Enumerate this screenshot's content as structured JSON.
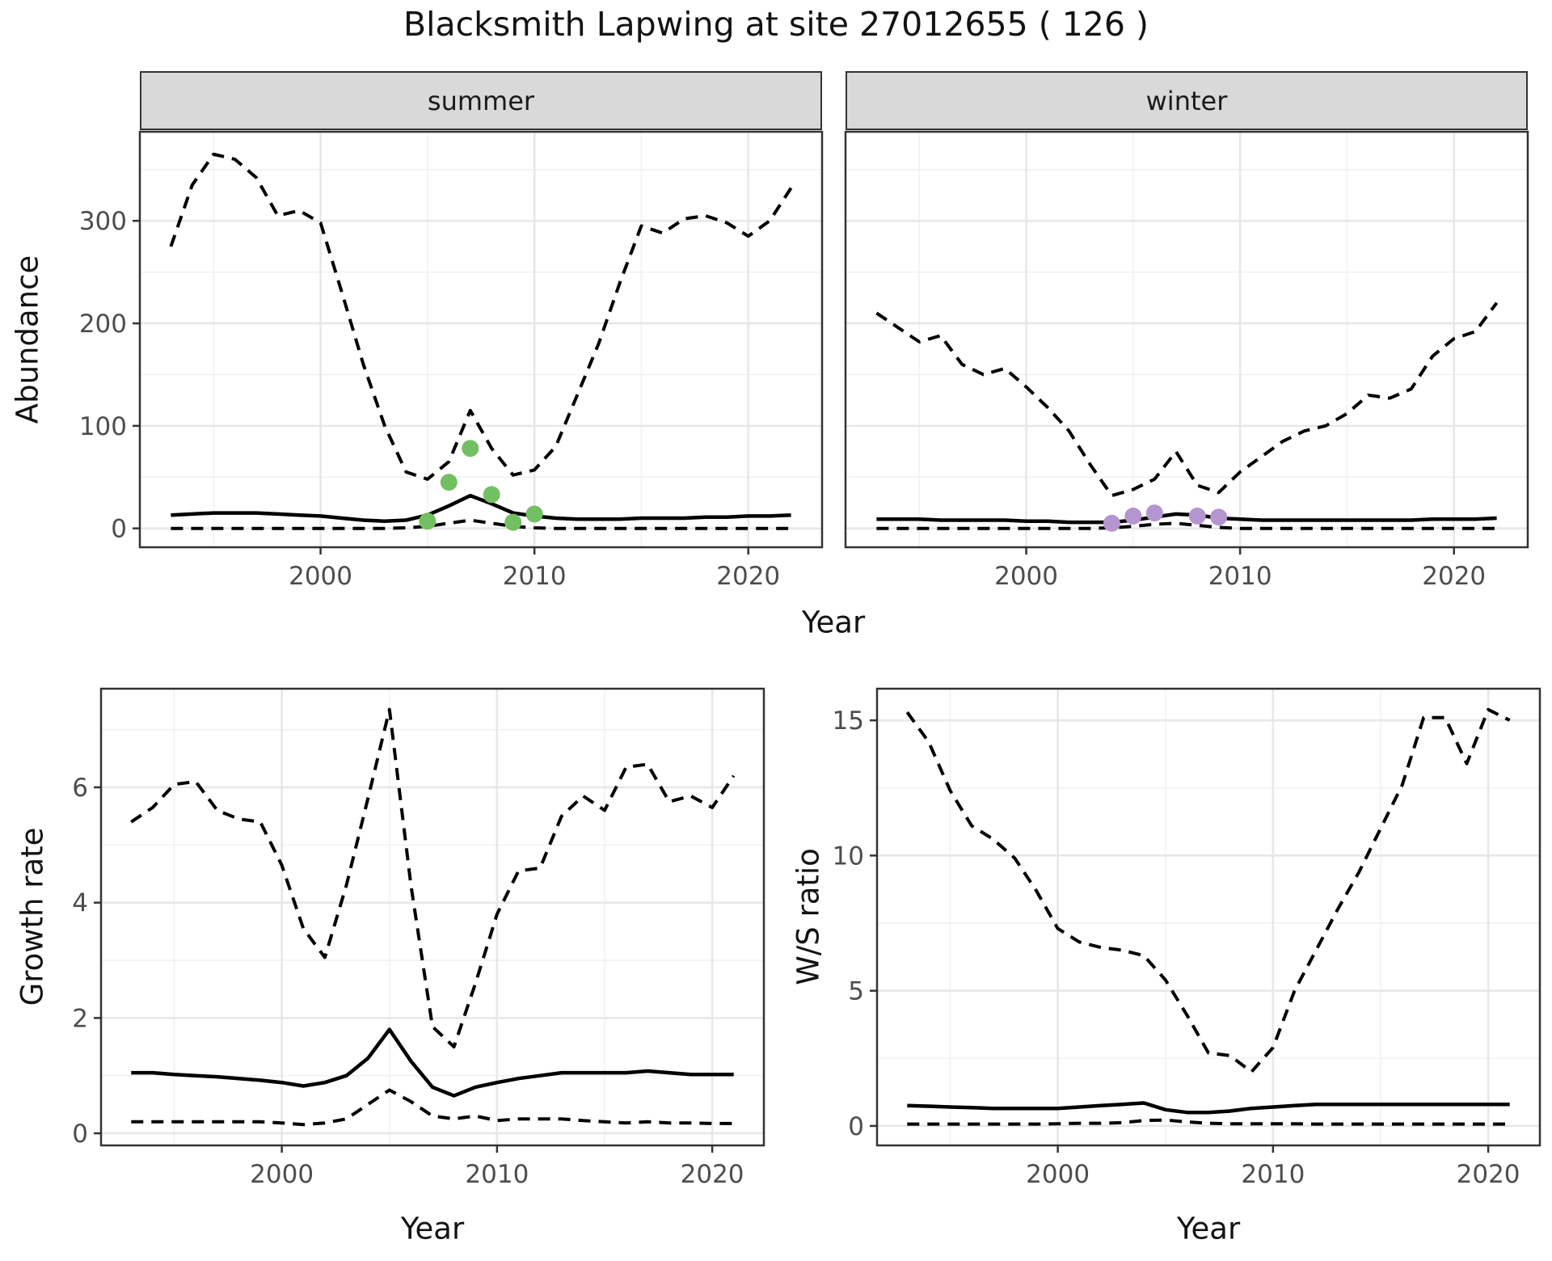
{
  "title": "Blacksmith Lapwing at site 27012655 ( 126 )",
  "colors": {
    "summer_points": "#73bf63",
    "winter_points": "#b495cf",
    "line": "#000000",
    "panel_border": "#333333",
    "grid_major": "#e7e7e7",
    "grid_minor": "#f1f1f1",
    "tick_label": "#4d4d4d",
    "strip_bg": "#d9d9d9"
  },
  "chart_data": [
    {
      "id": "abundance-summer",
      "type": "line",
      "facet_label": "summer",
      "title": "Blacksmith Lapwing at site 27012655 ( 126 )",
      "xlabel": "Year",
      "ylabel": "Abundance",
      "x_domain": [
        1991.55,
        2023.45
      ],
      "y_domain": [
        -18.4,
        386.9
      ],
      "x_ticks": [
        2000,
        2010,
        2020
      ],
      "x_minor": [
        1995,
        2005,
        2015
      ],
      "y_ticks": [
        0,
        100,
        200,
        300
      ],
      "y_minor": [
        50,
        150,
        250,
        350
      ],
      "show_y_axis": true,
      "grid": true,
      "legend": "none",
      "years": [
        1993,
        1994,
        1995,
        1996,
        1997,
        1998,
        1999,
        2000,
        2001,
        2002,
        2003,
        2004,
        2005,
        2006,
        2007,
        2008,
        2009,
        2010,
        2011,
        2012,
        2013,
        2014,
        2015,
        2016,
        2017,
        2018,
        2019,
        2020,
        2021,
        2022
      ],
      "series": [
        {
          "name": "upper-95ci",
          "style": "dashed",
          "values": [
            275,
            335,
            365,
            360,
            342,
            305,
            310,
            298,
            230,
            160,
            100,
            55,
            48,
            65,
            115,
            78,
            52,
            57,
            80,
            130,
            180,
            240,
            295,
            288,
            302,
            305,
            298,
            285,
            300,
            332
          ]
        },
        {
          "name": "median",
          "style": "solid",
          "values": [
            13,
            14,
            15,
            15,
            15,
            14,
            13,
            12,
            10,
            8,
            7,
            8,
            13,
            22,
            32,
            24,
            15,
            12,
            10,
            9,
            9,
            9,
            10,
            10,
            10,
            11,
            11,
            12,
            12,
            13
          ]
        },
        {
          "name": "lower-95ci",
          "style": "dashed",
          "values": [
            0,
            0,
            0,
            0,
            0,
            0,
            0,
            0,
            0,
            0,
            0,
            0.5,
            2,
            5,
            8,
            5,
            2,
            0.5,
            0,
            0,
            0,
            0,
            0,
            0,
            0,
            0,
            0,
            0,
            0,
            0
          ]
        }
      ],
      "points": {
        "name": "observed-summer-counts",
        "color": "#73bf63",
        "years": [
          2005,
          2006,
          2007,
          2008,
          2009,
          2010
        ],
        "values": [
          7,
          45,
          78,
          33,
          6,
          14
        ]
      }
    },
    {
      "id": "abundance-winter",
      "type": "line",
      "facet_label": "winter",
      "xlabel": "Year",
      "ylabel": "Abundance",
      "x_domain": [
        1991.55,
        2023.45
      ],
      "y_domain": [
        -18.4,
        386.9
      ],
      "x_ticks": [
        2000,
        2010,
        2020
      ],
      "x_minor": [
        1995,
        2005,
        2015
      ],
      "y_ticks": [
        0,
        100,
        200,
        300
      ],
      "y_minor": [
        50,
        150,
        250,
        350
      ],
      "show_y_axis": false,
      "grid": true,
      "legend": "none",
      "years": [
        1993,
        1994,
        1995,
        1996,
        1997,
        1998,
        1999,
        2000,
        2001,
        2002,
        2003,
        2004,
        2005,
        2006,
        2007,
        2008,
        2009,
        2010,
        2011,
        2012,
        2013,
        2014,
        2015,
        2016,
        2017,
        2018,
        2019,
        2020,
        2021,
        2022
      ],
      "series": [
        {
          "name": "upper-95ci",
          "style": "dashed",
          "values": [
            210,
            196,
            182,
            188,
            160,
            150,
            156,
            138,
            118,
            95,
            62,
            32,
            38,
            48,
            75,
            42,
            35,
            55,
            70,
            85,
            95,
            100,
            112,
            130,
            127,
            136,
            168,
            185,
            192,
            220
          ]
        },
        {
          "name": "median",
          "style": "solid",
          "values": [
            9,
            9,
            9,
            8,
            8,
            8,
            8,
            7,
            7,
            6,
            6,
            6,
            8,
            11,
            14,
            13,
            10,
            9,
            8,
            8,
            8,
            8,
            8,
            8,
            8,
            8,
            9,
            9,
            9,
            10
          ]
        },
        {
          "name": "lower-95ci",
          "style": "dashed",
          "values": [
            0,
            0,
            0,
            0,
            0,
            0,
            0,
            0,
            0,
            0,
            0,
            0.5,
            2,
            4,
            5,
            3,
            1,
            0,
            0,
            0,
            0,
            0,
            0,
            0,
            0,
            0,
            0,
            0,
            0,
            0
          ]
        }
      ],
      "points": {
        "name": "observed-winter-counts",
        "color": "#b495cf",
        "years": [
          2004,
          2005,
          2006,
          2008,
          2009
        ],
        "values": [
          5,
          12,
          15,
          12,
          11
        ]
      }
    },
    {
      "id": "growth-rate",
      "type": "line",
      "facet_label": "",
      "xlabel": "Year",
      "ylabel": "Growth rate",
      "x_domain": [
        1991.6,
        2022.4
      ],
      "y_domain": [
        -0.21,
        7.71
      ],
      "x_ticks": [
        2000,
        2010,
        2020
      ],
      "x_minor": [
        1995,
        2005,
        2015
      ],
      "y_ticks": [
        0,
        2,
        4,
        6
      ],
      "y_minor": [
        1,
        3,
        5,
        7
      ],
      "show_y_axis": true,
      "grid": true,
      "legend": "none",
      "years": [
        1993,
        1994,
        1995,
        1996,
        1997,
        1998,
        1999,
        2000,
        2001,
        2002,
        2003,
        2004,
        2005,
        2006,
        2007,
        2008,
        2009,
        2010,
        2011,
        2012,
        2013,
        2014,
        2015,
        2016,
        2017,
        2018,
        2019,
        2020,
        2021
      ],
      "series": [
        {
          "name": "upper-95ci",
          "style": "dashed",
          "values": [
            5.4,
            5.65,
            6.05,
            6.1,
            5.6,
            5.45,
            5.4,
            4.65,
            3.55,
            3.05,
            4.3,
            5.8,
            7.35,
            4.3,
            1.85,
            1.5,
            2.6,
            3.8,
            4.55,
            4.6,
            5.5,
            5.85,
            5.6,
            6.35,
            6.4,
            5.75,
            5.85,
            5.65,
            6.2
          ]
        },
        {
          "name": "median",
          "style": "solid",
          "values": [
            1.05,
            1.05,
            1.02,
            1.0,
            0.98,
            0.95,
            0.92,
            0.88,
            0.82,
            0.88,
            1.0,
            1.3,
            1.8,
            1.25,
            0.8,
            0.65,
            0.8,
            0.88,
            0.95,
            1.0,
            1.05,
            1.05,
            1.05,
            1.05,
            1.08,
            1.05,
            1.02,
            1.02,
            1.02
          ]
        },
        {
          "name": "lower-95ci",
          "style": "dashed",
          "values": [
            0.2,
            0.2,
            0.2,
            0.2,
            0.2,
            0.2,
            0.2,
            0.18,
            0.15,
            0.18,
            0.25,
            0.5,
            0.75,
            0.55,
            0.3,
            0.25,
            0.3,
            0.22,
            0.25,
            0.25,
            0.25,
            0.22,
            0.2,
            0.18,
            0.2,
            0.18,
            0.18,
            0.17,
            0.17
          ]
        }
      ],
      "points": null
    },
    {
      "id": "ws-ratio",
      "type": "line",
      "facet_label": "",
      "xlabel": "Year",
      "ylabel": "W/S ratio",
      "x_domain": [
        1991.6,
        2022.4
      ],
      "y_domain": [
        -0.72,
        16.17
      ],
      "x_ticks": [
        2000,
        2010,
        2020
      ],
      "x_minor": [
        1995,
        2005,
        2015
      ],
      "y_ticks": [
        0,
        5,
        10,
        15
      ],
      "y_minor": [
        2.5,
        7.5,
        12.5
      ],
      "show_y_axis": true,
      "grid": true,
      "legend": "none",
      "years": [
        1993,
        1994,
        1995,
        1996,
        1997,
        1998,
        1999,
        2000,
        2001,
        2002,
        2003,
        2004,
        2005,
        2006,
        2007,
        2008,
        2009,
        2010,
        2011,
        2012,
        2013,
        2014,
        2015,
        2016,
        2017,
        2018,
        2019,
        2020,
        2021
      ],
      "series": [
        {
          "name": "upper-95ci",
          "style": "dashed",
          "values": [
            15.3,
            14.2,
            12.4,
            11.1,
            10.6,
            9.9,
            8.7,
            7.3,
            6.8,
            6.6,
            6.5,
            6.3,
            5.4,
            4.1,
            2.7,
            2.6,
            2.0,
            2.9,
            5.0,
            6.5,
            8.0,
            9.4,
            11.0,
            12.6,
            15.1,
            15.1,
            13.4,
            15.4,
            15.0
          ]
        },
        {
          "name": "median",
          "style": "solid",
          "values": [
            0.75,
            0.73,
            0.7,
            0.68,
            0.65,
            0.65,
            0.65,
            0.65,
            0.7,
            0.75,
            0.8,
            0.85,
            0.6,
            0.5,
            0.5,
            0.55,
            0.65,
            0.7,
            0.75,
            0.8,
            0.8,
            0.8,
            0.8,
            0.8,
            0.8,
            0.8,
            0.8,
            0.8,
            0.8
          ]
        },
        {
          "name": "lower-95ci",
          "style": "dashed",
          "values": [
            0.07,
            0.07,
            0.07,
            0.07,
            0.07,
            0.07,
            0.07,
            0.08,
            0.1,
            0.1,
            0.12,
            0.2,
            0.22,
            0.15,
            0.1,
            0.08,
            0.08,
            0.08,
            0.08,
            0.07,
            0.07,
            0.07,
            0.07,
            0.07,
            0.07,
            0.07,
            0.07,
            0.07,
            0.07
          ]
        }
      ],
      "points": null
    }
  ]
}
